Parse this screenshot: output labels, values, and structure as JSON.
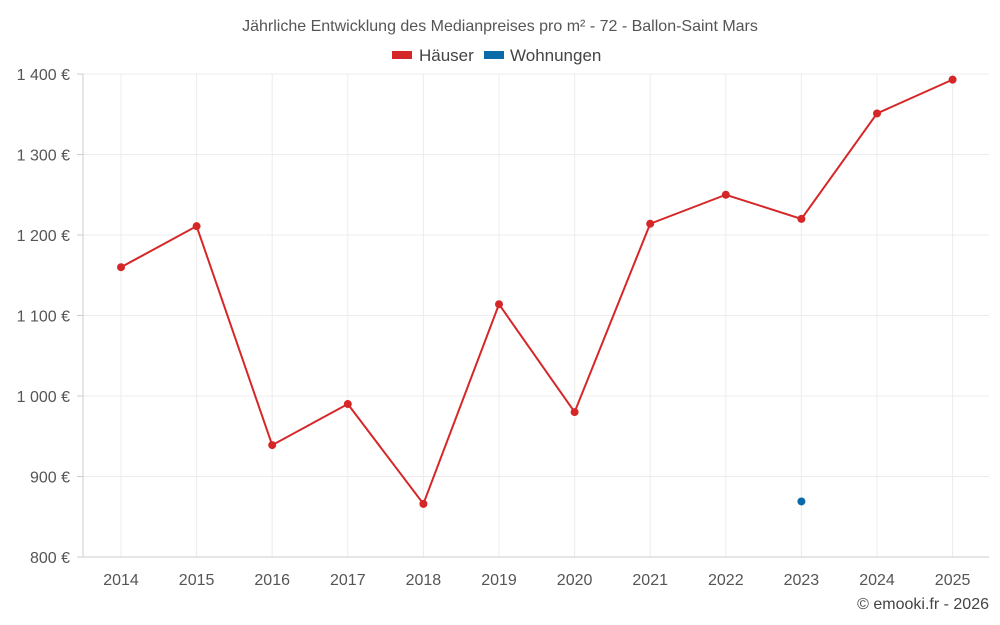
{
  "chart_data": {
    "type": "line",
    "title": "Jährliche Entwicklung des Medianpreises pro m² - 72 - Ballon-Saint Mars",
    "categories": [
      "2014",
      "2015",
      "2016",
      "2017",
      "2018",
      "2019",
      "2020",
      "2021",
      "2022",
      "2023",
      "2024",
      "2025"
    ],
    "series": [
      {
        "name": "Häuser",
        "color": "#d62728",
        "values": [
          1160,
          1211,
          939,
          990,
          866,
          1114,
          980,
          1214,
          1250,
          1220,
          1351,
          1393
        ]
      },
      {
        "name": "Wohnungen",
        "color": "#0a6aa8",
        "values": [
          null,
          null,
          null,
          null,
          null,
          null,
          null,
          null,
          null,
          869,
          null,
          null
        ]
      }
    ],
    "ylim": [
      800,
      1400
    ],
    "yticks": [
      800,
      900,
      1000,
      1100,
      1200,
      1300,
      1400
    ],
    "ytick_labels": [
      "800 €",
      "900 €",
      "1 000 €",
      "1 100 €",
      "1 200 €",
      "1 300 €",
      "1 400 €"
    ],
    "xlabel": "",
    "ylabel": "",
    "grid": true,
    "legend_position": "top-center"
  },
  "credit": "© emooki.fr - 2026"
}
